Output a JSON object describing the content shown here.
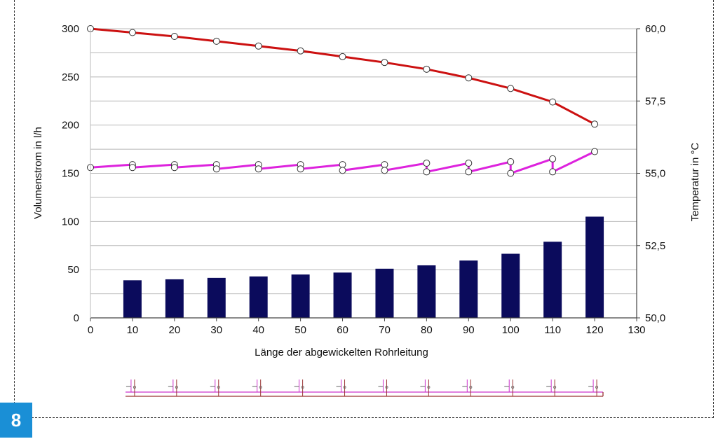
{
  "figure_number": "8",
  "chart_data": {
    "type": "bar+line",
    "xlabel": "Länge der abgewickelten Rohrleitung",
    "ylabel_left": "Volumenstrom  in  l/h",
    "ylabel_right": "Temperatur  in  °C",
    "xlim": [
      0,
      130
    ],
    "x_ticks": [
      0,
      10,
      20,
      30,
      40,
      50,
      60,
      70,
      80,
      90,
      100,
      110,
      120,
      130
    ],
    "ylim_left": [
      0,
      300
    ],
    "y_ticks_left": [
      0,
      50,
      100,
      150,
      200,
      250,
      300
    ],
    "ylim_right": [
      50.0,
      60.0
    ],
    "y_ticks_right": [
      "50,0",
      "52,5",
      "55,0",
      "57,5",
      "60,0"
    ],
    "grid": true,
    "bars": {
      "axis": "left",
      "color": "#0b0b5c",
      "x": [
        10,
        20,
        30,
        40,
        50,
        60,
        70,
        80,
        90,
        100,
        110,
        120
      ],
      "values": [
        39,
        40,
        41.5,
        43,
        45,
        47,
        51,
        54.5,
        59.5,
        66.5,
        79,
        105
      ]
    },
    "red_line": {
      "axis": "left",
      "color": "#cc1111",
      "x": [
        0,
        10,
        20,
        30,
        40,
        50,
        60,
        70,
        80,
        90,
        100,
        110,
        120
      ],
      "values": [
        300,
        296,
        292,
        287,
        282,
        277,
        271,
        265,
        258,
        249,
        238,
        224,
        201
      ]
    },
    "magenta_line": {
      "axis": "right",
      "color": "#dd22dd",
      "points": [
        [
          0,
          55.2
        ],
        [
          10,
          55.3
        ],
        [
          10,
          55.2
        ],
        [
          20,
          55.3
        ],
        [
          20,
          55.2
        ],
        [
          30,
          55.3
        ],
        [
          30,
          55.15
        ],
        [
          40,
          55.3
        ],
        [
          40,
          55.15
        ],
        [
          50,
          55.3
        ],
        [
          50,
          55.15
        ],
        [
          60,
          55.3
        ],
        [
          60,
          55.1
        ],
        [
          70,
          55.3
        ],
        [
          70,
          55.1
        ],
        [
          80,
          55.35
        ],
        [
          80,
          55.05
        ],
        [
          90,
          55.35
        ],
        [
          90,
          55.05
        ],
        [
          100,
          55.4
        ],
        [
          100,
          55.0
        ],
        [
          110,
          55.5
        ],
        [
          110,
          55.05
        ],
        [
          120,
          55.75
        ]
      ]
    },
    "schematic_risers": [
      10,
      20,
      30,
      40,
      50,
      60,
      70,
      80,
      90,
      100,
      110,
      120
    ]
  }
}
